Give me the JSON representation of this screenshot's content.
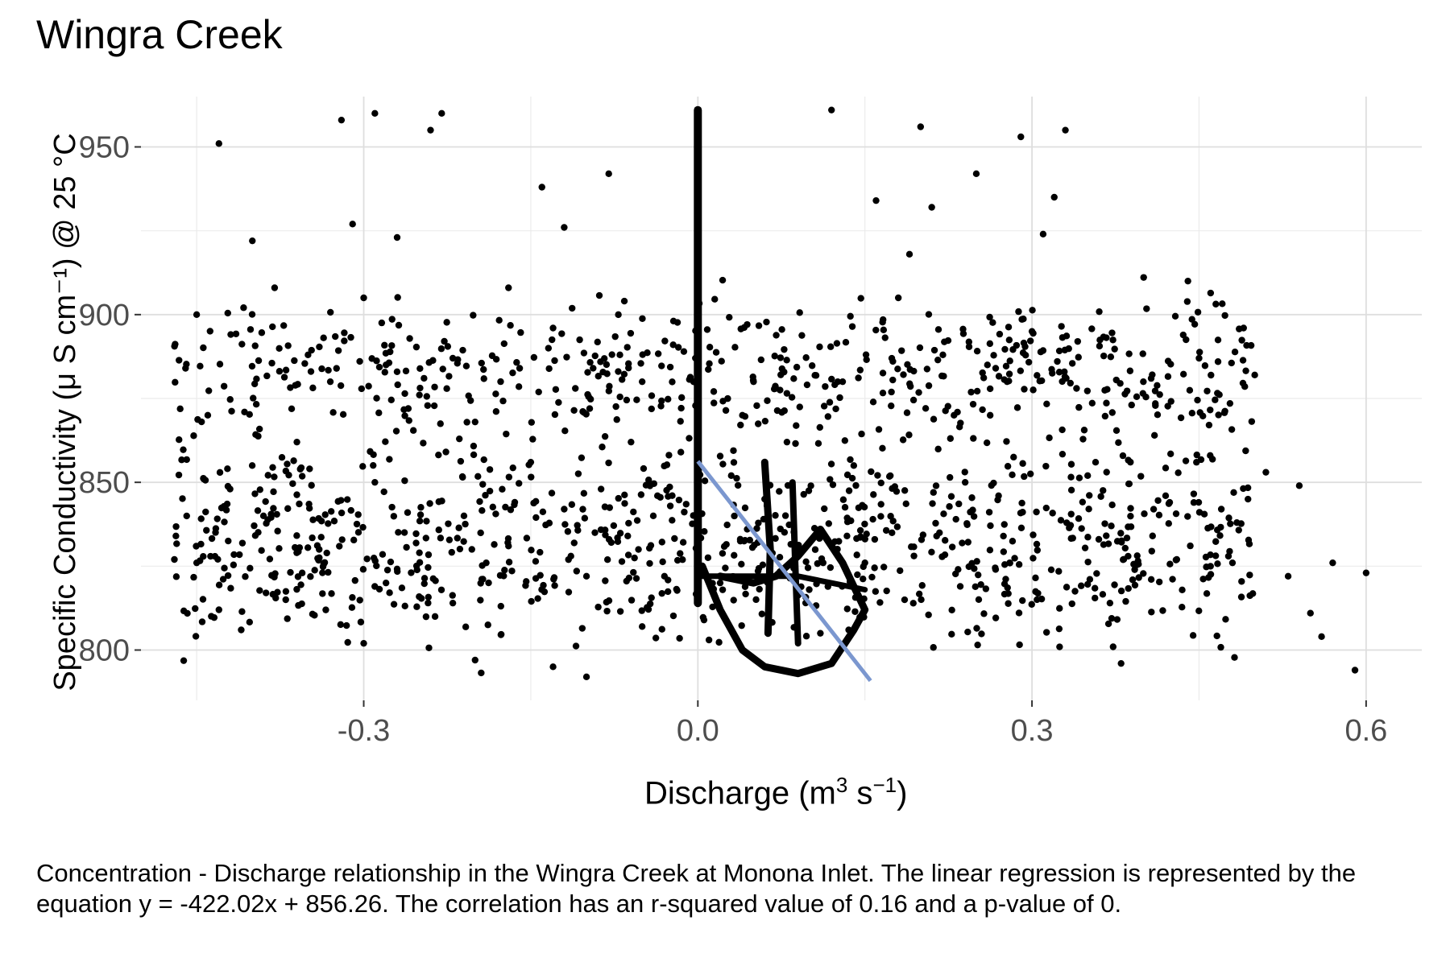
{
  "chart_data": {
    "type": "scatter",
    "title": "Wingra Creek",
    "xlabel": "Discharge (m³ s⁻¹)",
    "ylabel": "Specific Conductivity (μ S cm⁻¹) @ 25 °C",
    "xlim": [
      -0.5,
      0.65
    ],
    "ylim": [
      785,
      965
    ],
    "x_ticks": [
      -0.3,
      0.0,
      0.3,
      0.6
    ],
    "x_tick_labels": [
      "-0.3",
      "0.0",
      "0.3",
      "0.6"
    ],
    "y_ticks": [
      800,
      850,
      900,
      950
    ],
    "y_tick_labels": [
      "800",
      "850",
      "900",
      "950"
    ],
    "grid": true,
    "regression": {
      "slope": -422.02,
      "intercept": 856.26,
      "x_range": [
        0.0,
        0.155
      ],
      "color": "#7b97cf"
    },
    "point_color": "#000000",
    "series": [
      {
        "points": [
          [
            -0.43,
            951
          ],
          [
            -0.4,
            922
          ],
          [
            -0.45,
            900
          ],
          [
            -0.46,
            884
          ],
          [
            -0.44,
            870
          ],
          [
            -0.42,
            848
          ],
          [
            -0.47,
            827
          ],
          [
            -0.41,
            806
          ],
          [
            -0.45,
            826
          ],
          [
            -0.43,
            812
          ],
          [
            -0.38,
            908
          ],
          [
            -0.35,
            888
          ],
          [
            -0.33,
            880
          ],
          [
            -0.36,
            862
          ],
          [
            -0.39,
            840
          ],
          [
            -0.34,
            830
          ],
          [
            -0.37,
            815
          ],
          [
            -0.32,
            958
          ],
          [
            -0.29,
            960
          ],
          [
            -0.31,
            927
          ],
          [
            -0.27,
            923
          ],
          [
            -0.3,
            905
          ],
          [
            -0.28,
            885
          ],
          [
            -0.26,
            872
          ],
          [
            -0.29,
            850
          ],
          [
            -0.25,
            829
          ],
          [
            -0.28,
            820
          ],
          [
            -0.3,
            802
          ],
          [
            -0.24,
            955
          ],
          [
            -0.23,
            960
          ],
          [
            -0.22,
            887
          ],
          [
            -0.2,
            868
          ],
          [
            -0.21,
            840
          ],
          [
            -0.19,
            826
          ],
          [
            -0.22,
            814
          ],
          [
            -0.2,
            797
          ],
          [
            -0.17,
            908
          ],
          [
            -0.16,
            884
          ],
          [
            -0.15,
            856
          ],
          [
            -0.17,
            831
          ],
          [
            -0.14,
            938
          ],
          [
            -0.12,
            926
          ],
          [
            -0.13,
            896
          ],
          [
            -0.11,
            878
          ],
          [
            -0.12,
            842
          ],
          [
            -0.1,
            822
          ],
          [
            -0.13,
            795
          ],
          [
            -0.1,
            792
          ],
          [
            -0.08,
            942
          ],
          [
            -0.07,
            888
          ],
          [
            -0.05,
            880
          ],
          [
            -0.06,
            862
          ],
          [
            -0.04,
            840
          ],
          [
            -0.03,
            822
          ],
          [
            -0.05,
            807
          ],
          [
            0.0,
            960
          ],
          [
            0.0,
            940
          ],
          [
            0.0,
            920
          ],
          [
            0.0,
            900
          ],
          [
            0.0,
            880
          ],
          [
            0.0,
            860
          ],
          [
            0.0,
            845
          ],
          [
            0.0,
            830
          ],
          [
            0.0,
            818
          ],
          [
            0.01,
            803
          ],
          [
            0.02,
            820
          ],
          [
            0.03,
            852
          ],
          [
            0.04,
            870
          ],
          [
            0.05,
            880
          ],
          [
            0.06,
            845
          ],
          [
            0.07,
            878
          ],
          [
            0.08,
            862
          ],
          [
            0.09,
            830
          ],
          [
            0.1,
            818
          ],
          [
            0.11,
            805
          ],
          [
            0.12,
            961
          ],
          [
            0.13,
            880
          ],
          [
            0.14,
            855
          ],
          [
            0.15,
            826
          ],
          [
            0.16,
            934
          ],
          [
            0.18,
            905
          ],
          [
            0.19,
            918
          ],
          [
            0.2,
            956
          ],
          [
            0.21,
            932
          ],
          [
            0.22,
            888
          ],
          [
            0.23,
            870
          ],
          [
            0.24,
            850
          ],
          [
            0.25,
            942
          ],
          [
            0.26,
            885
          ],
          [
            0.27,
            846
          ],
          [
            0.28,
            826
          ],
          [
            0.29,
            953
          ],
          [
            0.3,
            895
          ],
          [
            0.31,
            924
          ],
          [
            0.32,
            935
          ],
          [
            0.33,
            955
          ],
          [
            0.34,
            878
          ],
          [
            0.35,
            852
          ],
          [
            0.36,
            833
          ],
          [
            0.37,
            814
          ],
          [
            0.38,
            796
          ],
          [
            0.4,
            880
          ],
          [
            0.41,
            864
          ],
          [
            0.42,
            846
          ],
          [
            0.43,
            827
          ],
          [
            0.44,
            910
          ],
          [
            0.45,
            887
          ],
          [
            0.46,
            858
          ],
          [
            0.47,
            842
          ],
          [
            0.48,
            826
          ],
          [
            0.49,
            896
          ],
          [
            0.5,
            882
          ],
          [
            0.51,
            853
          ],
          [
            0.53,
            822
          ],
          [
            0.54,
            849
          ],
          [
            0.55,
            811
          ],
          [
            0.56,
            804
          ],
          [
            0.57,
            826
          ],
          [
            0.59,
            794
          ],
          [
            0.6,
            823
          ]
        ]
      }
    ]
  }
}
